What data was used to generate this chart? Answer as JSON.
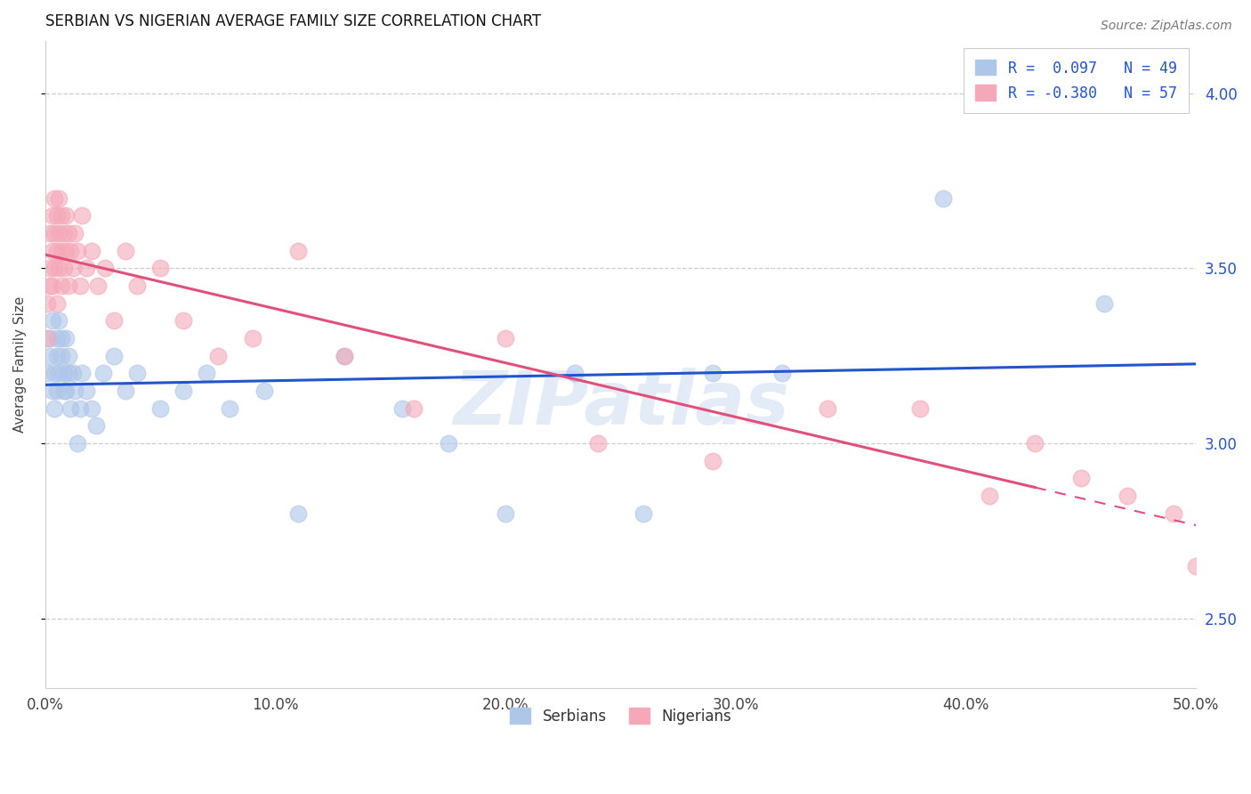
{
  "title": "SERBIAN VS NIGERIAN AVERAGE FAMILY SIZE CORRELATION CHART",
  "source": "Source: ZipAtlas.com",
  "ylabel": "Average Family Size",
  "yticks": [
    2.5,
    3.0,
    3.5,
    4.0
  ],
  "xlim": [
    0.0,
    0.5
  ],
  "ylim": [
    2.3,
    4.15
  ],
  "legend_entries": [
    {
      "label": "R =  0.097   N = 49",
      "color": "#aec6e8"
    },
    {
      "label": "R = -0.380   N = 57",
      "color": "#f4a8b8"
    }
  ],
  "legend_labels": [
    "Serbians",
    "Nigerians"
  ],
  "watermark": "ZIPatlas",
  "blue_scatter_color": "#aec6e8",
  "pink_scatter_color": "#f4a8b8",
  "blue_line_color": "#2255cc",
  "pink_line_color": "#e0507a",
  "grid_color": "#cccccc",
  "background_color": "#ffffff",
  "serbian_x": [
    0.001,
    0.002,
    0.002,
    0.003,
    0.003,
    0.004,
    0.004,
    0.005,
    0.005,
    0.005,
    0.006,
    0.006,
    0.007,
    0.007,
    0.008,
    0.008,
    0.009,
    0.009,
    0.01,
    0.01,
    0.011,
    0.012,
    0.013,
    0.014,
    0.015,
    0.016,
    0.018,
    0.02,
    0.022,
    0.025,
    0.03,
    0.035,
    0.04,
    0.05,
    0.06,
    0.07,
    0.08,
    0.095,
    0.11,
    0.13,
    0.155,
    0.175,
    0.2,
    0.23,
    0.26,
    0.29,
    0.32,
    0.39,
    0.46
  ],
  "serbian_y": [
    3.2,
    3.3,
    3.25,
    3.15,
    3.35,
    3.2,
    3.1,
    3.3,
    3.25,
    3.15,
    3.35,
    3.2,
    3.3,
    3.25,
    3.15,
    3.2,
    3.3,
    3.15,
    3.2,
    3.25,
    3.1,
    3.2,
    3.15,
    3.0,
    3.1,
    3.2,
    3.15,
    3.1,
    3.05,
    3.2,
    3.25,
    3.15,
    3.2,
    3.1,
    3.15,
    3.2,
    3.1,
    3.15,
    2.8,
    3.25,
    3.1,
    3.0,
    2.8,
    3.2,
    2.8,
    3.2,
    3.2,
    3.7,
    3.4
  ],
  "nigerian_x": [
    0.001,
    0.001,
    0.002,
    0.002,
    0.002,
    0.003,
    0.003,
    0.003,
    0.004,
    0.004,
    0.004,
    0.005,
    0.005,
    0.005,
    0.006,
    0.006,
    0.006,
    0.007,
    0.007,
    0.007,
    0.008,
    0.008,
    0.009,
    0.009,
    0.01,
    0.01,
    0.011,
    0.012,
    0.013,
    0.014,
    0.015,
    0.016,
    0.018,
    0.02,
    0.023,
    0.026,
    0.03,
    0.035,
    0.04,
    0.05,
    0.06,
    0.075,
    0.09,
    0.11,
    0.13,
    0.16,
    0.2,
    0.24,
    0.29,
    0.34,
    0.38,
    0.41,
    0.43,
    0.45,
    0.47,
    0.49,
    0.5
  ],
  "nigerian_y": [
    3.3,
    3.4,
    3.5,
    3.6,
    3.45,
    3.55,
    3.65,
    3.45,
    3.6,
    3.7,
    3.5,
    3.55,
    3.65,
    3.4,
    3.6,
    3.7,
    3.5,
    3.55,
    3.65,
    3.45,
    3.6,
    3.5,
    3.65,
    3.55,
    3.6,
    3.45,
    3.55,
    3.5,
    3.6,
    3.55,
    3.45,
    3.65,
    3.5,
    3.55,
    3.45,
    3.5,
    3.35,
    3.55,
    3.45,
    3.5,
    3.35,
    3.25,
    3.3,
    3.55,
    3.25,
    3.1,
    3.3,
    3.0,
    2.95,
    3.1,
    3.1,
    2.85,
    3.0,
    2.9,
    2.85,
    2.8,
    2.65
  ],
  "title_fontsize": 12,
  "axis_label_fontsize": 11,
  "tick_fontsize": 12,
  "legend_fontsize": 12,
  "source_fontsize": 10
}
